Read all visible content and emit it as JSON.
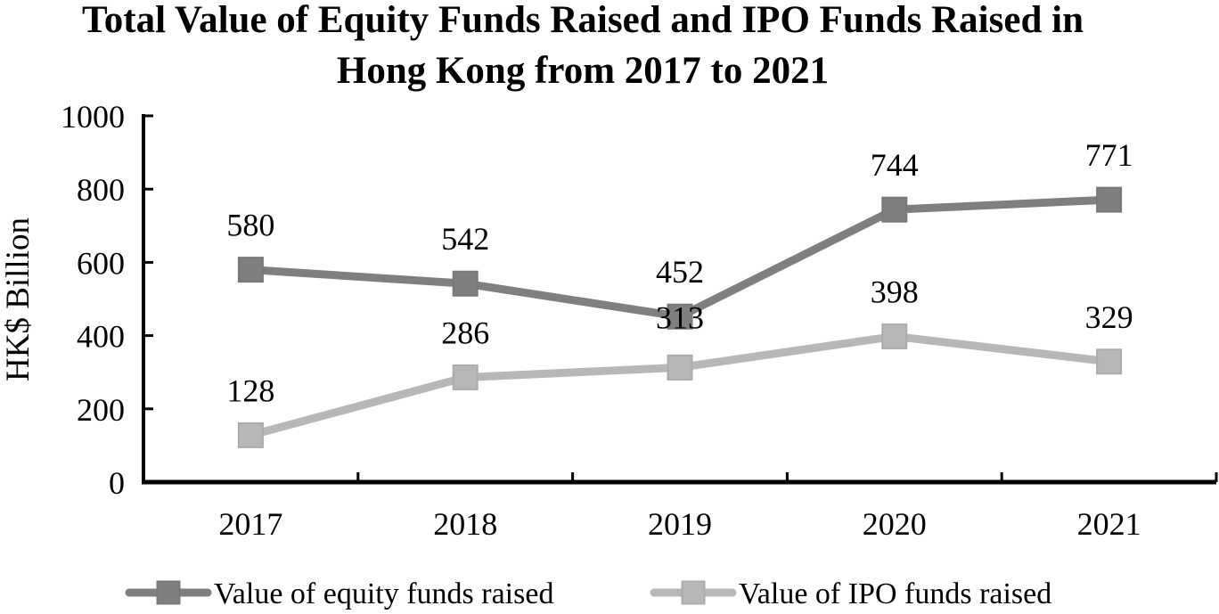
{
  "chart_data": {
    "type": "line",
    "title": "Total Value of Equity Funds Raised and IPO Funds Raised in Hong Kong from 2017 to 2021",
    "title_lines": [
      "Total Value of Equity Funds Raised and IPO Funds Raised in",
      "Hong Kong from 2017 to 2021"
    ],
    "ylabel": "HK$ Billion",
    "xlabel": "",
    "categories": [
      "2017",
      "2018",
      "2019",
      "2020",
      "2021"
    ],
    "series": [
      {
        "name": "Value of equity funds raised",
        "values": [
          580,
          542,
          452,
          744,
          771
        ],
        "color": "#7f7f7f",
        "marker": "square"
      },
      {
        "name": "Value of IPO funds raised",
        "values": [
          128,
          286,
          313,
          398,
          329
        ],
        "color": "#b7b7b7",
        "marker": "square"
      }
    ],
    "ylim": [
      0,
      1000
    ],
    "yticks": [
      0,
      200,
      400,
      600,
      800,
      1000
    ],
    "grid": false,
    "data_labels": true,
    "legend_position": "bottom",
    "axis_color": "#000000",
    "label_color": "#000000"
  }
}
